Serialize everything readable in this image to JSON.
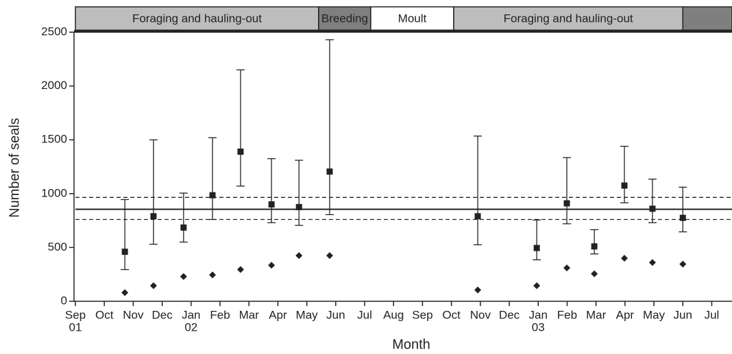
{
  "chart_data": {
    "type": "scatter",
    "xlabel": "Month",
    "ylabel": "Number of seals",
    "xlim": [
      0,
      22.7
    ],
    "ylim": [
      0,
      2500
    ],
    "yticks": [
      0,
      500,
      1000,
      1500,
      2000,
      2500
    ],
    "xticks": [
      {
        "value": 0,
        "label": "Sep"
      },
      {
        "value": 1,
        "label": "Oct"
      },
      {
        "value": 2,
        "label": "Nov"
      },
      {
        "value": 3,
        "label": "Dec"
      },
      {
        "value": 4,
        "label": "Jan"
      },
      {
        "value": 5,
        "label": "Feb"
      },
      {
        "value": 6,
        "label": "Mar"
      },
      {
        "value": 7,
        "label": "Apr"
      },
      {
        "value": 8,
        "label": "May"
      },
      {
        "value": 9,
        "label": "Jun"
      },
      {
        "value": 10,
        "label": "Jul"
      },
      {
        "value": 11,
        "label": "Aug"
      },
      {
        "value": 12,
        "label": "Sep"
      },
      {
        "value": 13,
        "label": "Oct"
      },
      {
        "value": 14,
        "label": "Nov"
      },
      {
        "value": 15,
        "label": "Dec"
      },
      {
        "value": 16,
        "label": "Jan"
      },
      {
        "value": 17,
        "label": "Feb"
      },
      {
        "value": 18,
        "label": "Mar"
      },
      {
        "value": 19,
        "label": "Apr"
      },
      {
        "value": 20,
        "label": "May"
      },
      {
        "value": 21,
        "label": "Jun"
      },
      {
        "value": 22,
        "label": "Jul"
      }
    ],
    "year_labels": [
      {
        "value": 0,
        "label": "01"
      },
      {
        "value": 4,
        "label": "02"
      },
      {
        "value": 16,
        "label": "03"
      }
    ],
    "phases": [
      {
        "label": "Foraging and hauling-out",
        "start": 0,
        "end": 8.41,
        "color": "#bdbdbd"
      },
      {
        "label": "Breeding",
        "start": 8.41,
        "end": 10.21,
        "color": "#7f7f7f"
      },
      {
        "label": "Moult",
        "start": 10.21,
        "end": 13.08,
        "color": "#ffffff"
      },
      {
        "label": "Foraging and hauling-out",
        "start": 13.08,
        "end": 21.0,
        "color": "#bdbdbd"
      },
      {
        "label": null,
        "start": 21.0,
        "end": 22.7,
        "color": "#7f7f7f"
      }
    ],
    "hlines": [
      {
        "value": 855,
        "style": "solid"
      },
      {
        "value": 965,
        "style": "dashed"
      },
      {
        "value": 760,
        "style": "dashed"
      }
    ],
    "series": [
      {
        "marker": "square",
        "color": "#222222",
        "x": [
          1.71,
          2.7,
          3.74,
          4.74,
          5.71,
          6.78,
          7.73,
          8.79,
          13.91,
          15.95,
          16.99,
          17.94,
          18.98,
          19.95,
          21.0
        ],
        "values": [
          460,
          790,
          685,
          985,
          1390,
          900,
          875,
          1205,
          790,
          495,
          910,
          510,
          1075,
          860,
          775
        ],
        "lower": [
          295,
          530,
          550,
          760,
          1070,
          730,
          705,
          805,
          525,
          385,
          720,
          440,
          915,
          730,
          645
        ],
        "upper": [
          945,
          1500,
          1005,
          1520,
          2150,
          1325,
          1310,
          2430,
          1535,
          755,
          1335,
          665,
          1440,
          1135,
          1060
        ]
      },
      {
        "marker": "diamond",
        "color": "#222222",
        "x": [
          1.71,
          2.7,
          3.74,
          4.74,
          5.71,
          6.78,
          7.73,
          8.79,
          13.91,
          15.95,
          16.99,
          17.94,
          18.98,
          19.95,
          21.0
        ],
        "values": [
          80,
          145,
          230,
          245,
          295,
          335,
          425,
          425,
          105,
          145,
          310,
          255,
          400,
          360,
          345
        ]
      }
    ]
  }
}
